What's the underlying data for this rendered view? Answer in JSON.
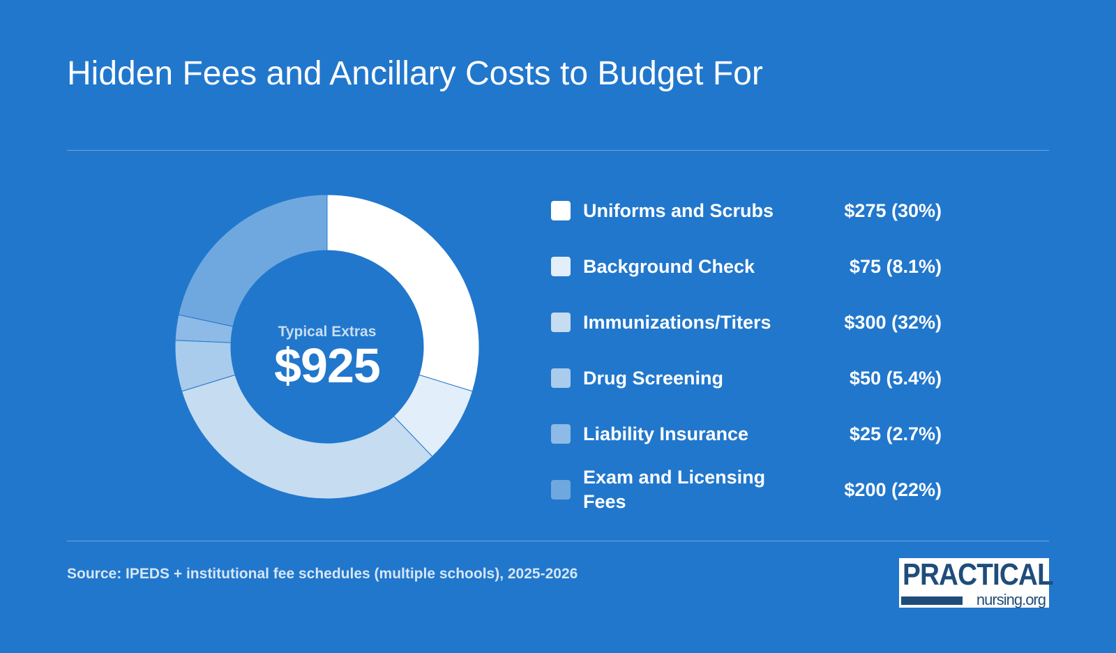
{
  "page": {
    "title": "Hidden Fees and Ancillary Costs to Budget For",
    "source": "Source: IPEDS + institutional fee schedules (multiple schools), 2025-2026"
  },
  "center": {
    "label": "Typical Extras",
    "value": "$925"
  },
  "logo": {
    "top": "PRACTICAL",
    "bottom": "nursing.org",
    "color": "#1f4d7a"
  },
  "colors": {
    "background": "#2177cc",
    "slice_border": "#2177cc"
  },
  "chart_data": {
    "type": "pie",
    "donut": true,
    "total": 925,
    "categories": [
      "Uniforms and Scrubs",
      "Background Check",
      "Immunizations/Titers",
      "Drug Screening",
      "Liability Insurance",
      "Exam and Licensing Fees"
    ],
    "values": [
      275,
      75,
      300,
      50,
      25,
      200
    ],
    "value_labels": [
      "$275 (30%)",
      "$75 (8.1%)",
      "$300 (32%)",
      "$50 (5.4%)",
      "$25 (2.7%)",
      "$200 (22%)"
    ],
    "colors": [
      "#ffffff",
      "#e2eef9",
      "#c6dcf1",
      "#a9cbec",
      "#8dbae6",
      "#6fa8df"
    ],
    "legend_position": "right"
  }
}
